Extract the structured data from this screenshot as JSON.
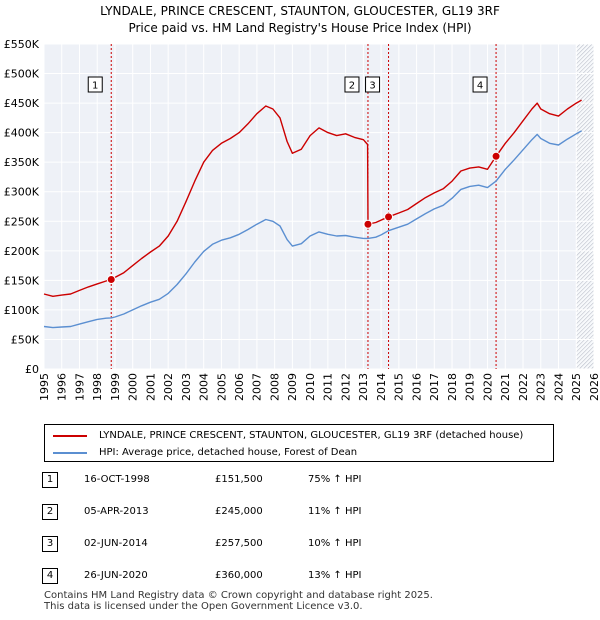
{
  "chart_data": {
    "type": "line",
    "title": "LYNDALE, PRINCE CRESCENT, STAUNTON, GLOUCESTER, GL19 3RF",
    "subtitle": "Price paid vs. HM Land Registry's House Price Index (HPI)",
    "xlim": [
      1995,
      2026
    ],
    "ylim": [
      0,
      550000
    ],
    "x_ticks": [
      1995,
      1996,
      1997,
      1998,
      1999,
      2000,
      2001,
      2002,
      2003,
      2004,
      2005,
      2006,
      2007,
      2008,
      2009,
      2010,
      2011,
      2012,
      2013,
      2014,
      2015,
      2016,
      2017,
      2018,
      2019,
      2020,
      2021,
      2022,
      2023,
      2024,
      2025,
      2026
    ],
    "y_ticks": [
      0,
      50000,
      100000,
      150000,
      200000,
      250000,
      300000,
      350000,
      400000,
      450000,
      500000,
      550000
    ],
    "y_tick_labels": [
      "£0",
      "£50K",
      "£100K",
      "£150K",
      "£200K",
      "£250K",
      "£300K",
      "£350K",
      "£400K",
      "£450K",
      "£500K",
      "£550K"
    ],
    "grid": true,
    "series": [
      {
        "name": "LYNDALE, PRINCE CRESCENT, STAUNTON, GLOUCESTER, GL19 3RF (detached house)",
        "color": "#cc0000",
        "points": [
          [
            1995.0,
            127000
          ],
          [
            1995.5,
            123000
          ],
          [
            1996.0,
            125000
          ],
          [
            1996.5,
            127000
          ],
          [
            1997.0,
            133000
          ],
          [
            1997.5,
            139000
          ],
          [
            1998.0,
            144000
          ],
          [
            1998.5,
            149000
          ],
          [
            1998.79,
            151500
          ],
          [
            1999.0,
            155000
          ],
          [
            1999.5,
            163000
          ],
          [
            2000.0,
            175000
          ],
          [
            2000.5,
            187000
          ],
          [
            2001.0,
            198000
          ],
          [
            2001.5,
            208000
          ],
          [
            2002.0,
            225000
          ],
          [
            2002.5,
            250000
          ],
          [
            2003.0,
            283000
          ],
          [
            2003.5,
            318000
          ],
          [
            2004.0,
            350000
          ],
          [
            2004.5,
            370000
          ],
          [
            2005.0,
            382000
          ],
          [
            2005.5,
            390000
          ],
          [
            2006.0,
            400000
          ],
          [
            2006.5,
            415000
          ],
          [
            2007.0,
            432000
          ],
          [
            2007.5,
            445000
          ],
          [
            2007.9,
            440000
          ],
          [
            2008.3,
            425000
          ],
          [
            2008.7,
            385000
          ],
          [
            2009.0,
            365000
          ],
          [
            2009.5,
            372000
          ],
          [
            2010.0,
            395000
          ],
          [
            2010.5,
            408000
          ],
          [
            2011.0,
            400000
          ],
          [
            2011.5,
            395000
          ],
          [
            2012.0,
            398000
          ],
          [
            2012.5,
            392000
          ],
          [
            2013.0,
            388000
          ],
          [
            2013.24,
            380000
          ],
          [
            2013.26,
            245000
          ],
          [
            2013.7,
            248000
          ],
          [
            2014.0,
            252000
          ],
          [
            2014.42,
            257500
          ],
          [
            2015.0,
            264000
          ],
          [
            2015.5,
            270000
          ],
          [
            2016.0,
            280000
          ],
          [
            2016.5,
            290000
          ],
          [
            2017.0,
            298000
          ],
          [
            2017.5,
            305000
          ],
          [
            2018.0,
            318000
          ],
          [
            2018.5,
            335000
          ],
          [
            2019.0,
            340000
          ],
          [
            2019.5,
            342000
          ],
          [
            2020.0,
            338000
          ],
          [
            2020.48,
            360000
          ],
          [
            2021.0,
            382000
          ],
          [
            2021.5,
            400000
          ],
          [
            2022.0,
            420000
          ],
          [
            2022.5,
            440000
          ],
          [
            2022.8,
            450000
          ],
          [
            2023.0,
            440000
          ],
          [
            2023.5,
            432000
          ],
          [
            2024.0,
            428000
          ],
          [
            2024.5,
            440000
          ],
          [
            2025.0,
            450000
          ],
          [
            2025.3,
            455000
          ]
        ]
      },
      {
        "name": "HPI: Average price, detached house, Forest of Dean",
        "color": "#5b8fd1",
        "points": [
          [
            1995.0,
            72000
          ],
          [
            1995.5,
            70000
          ],
          [
            1996.0,
            71000
          ],
          [
            1996.5,
            72000
          ],
          [
            1997.0,
            76000
          ],
          [
            1997.5,
            80000
          ],
          [
            1998.0,
            84000
          ],
          [
            1998.5,
            86000
          ],
          [
            1998.79,
            86500
          ],
          [
            1999.0,
            88000
          ],
          [
            1999.5,
            93000
          ],
          [
            2000.0,
            100000
          ],
          [
            2000.5,
            107000
          ],
          [
            2001.0,
            113000
          ],
          [
            2001.5,
            118000
          ],
          [
            2002.0,
            128000
          ],
          [
            2002.5,
            143000
          ],
          [
            2003.0,
            161000
          ],
          [
            2003.5,
            181000
          ],
          [
            2004.0,
            199000
          ],
          [
            2004.5,
            211000
          ],
          [
            2005.0,
            218000
          ],
          [
            2005.5,
            222000
          ],
          [
            2006.0,
            228000
          ],
          [
            2006.5,
            236000
          ],
          [
            2007.0,
            245000
          ],
          [
            2007.5,
            253000
          ],
          [
            2007.9,
            250000
          ],
          [
            2008.3,
            242000
          ],
          [
            2008.7,
            219000
          ],
          [
            2009.0,
            208000
          ],
          [
            2009.5,
            212000
          ],
          [
            2010.0,
            225000
          ],
          [
            2010.5,
            232000
          ],
          [
            2011.0,
            228000
          ],
          [
            2011.5,
            225000
          ],
          [
            2012.0,
            226000
          ],
          [
            2012.5,
            223000
          ],
          [
            2013.0,
            221000
          ],
          [
            2013.26,
            221000
          ],
          [
            2013.7,
            223000
          ],
          [
            2014.0,
            227000
          ],
          [
            2014.42,
            234000
          ],
          [
            2015.0,
            240000
          ],
          [
            2015.5,
            245000
          ],
          [
            2016.0,
            254000
          ],
          [
            2016.5,
            263000
          ],
          [
            2017.0,
            271000
          ],
          [
            2017.5,
            277000
          ],
          [
            2018.0,
            289000
          ],
          [
            2018.5,
            304000
          ],
          [
            2019.0,
            309000
          ],
          [
            2019.5,
            311000
          ],
          [
            2020.0,
            307000
          ],
          [
            2020.48,
            318000
          ],
          [
            2021.0,
            338000
          ],
          [
            2021.5,
            354000
          ],
          [
            2022.0,
            371000
          ],
          [
            2022.5,
            388000
          ],
          [
            2022.8,
            397000
          ],
          [
            2023.0,
            390000
          ],
          [
            2023.5,
            382000
          ],
          [
            2024.0,
            379000
          ],
          [
            2024.5,
            389000
          ],
          [
            2025.0,
            398000
          ],
          [
            2025.3,
            403000
          ]
        ]
      }
    ],
    "sales": [
      {
        "num": "1",
        "year": 1998.79,
        "price": 151500,
        "date": "16-OCT-1998",
        "price_label": "£151,500",
        "hpi": "75% ↑ HPI"
      },
      {
        "num": "2",
        "year": 2013.26,
        "price": 245000,
        "date": "05-APR-2013",
        "price_label": "£245,000",
        "hpi": "11% ↑ HPI"
      },
      {
        "num": "3",
        "year": 2014.42,
        "price": 257500,
        "date": "02-JUN-2014",
        "price_label": "£257,500",
        "hpi": "10% ↑ HPI"
      },
      {
        "num": "4",
        "year": 2020.48,
        "price": 360000,
        "date": "26-JUN-2020",
        "price_label": "£360,000",
        "hpi": "13% ↑ HPI"
      }
    ],
    "future_from": 2025.0
  },
  "footer": {
    "line1": "Contains HM Land Registry data © Crown copyright and database right 2025.",
    "line2": "This data is licensed under the Open Government Licence v3.0."
  }
}
